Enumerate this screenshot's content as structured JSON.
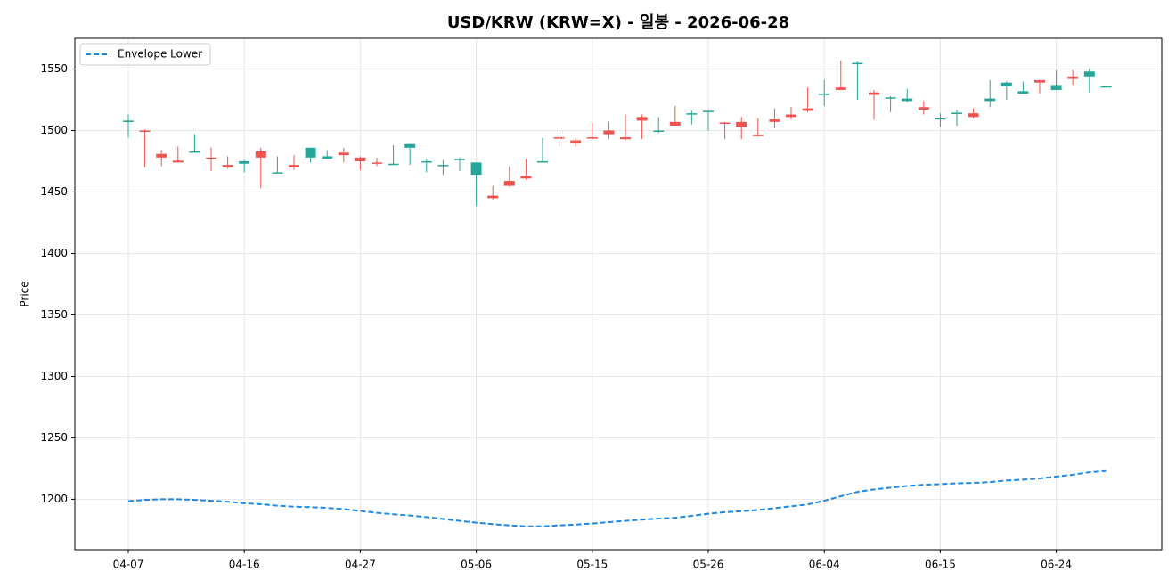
{
  "chart_data": {
    "type": "candlestick",
    "title": "USD/KRW (KRW=X) - 일봉 - 2026-06-28",
    "y_label": "Price",
    "categories": [
      "04-07",
      null,
      null,
      null,
      null,
      null,
      null,
      "04-16",
      null,
      null,
      null,
      null,
      null,
      null,
      "04-27",
      null,
      null,
      null,
      null,
      null,
      null,
      "05-06",
      null,
      null,
      null,
      null,
      null,
      null,
      "05-15",
      null,
      null,
      null,
      null,
      null,
      null,
      "05-26",
      null,
      null,
      null,
      null,
      null,
      null,
      "06-04",
      null,
      null,
      null,
      null,
      null,
      null,
      "06-15",
      null,
      null,
      null,
      null,
      null,
      null,
      "06-24",
      null,
      null,
      null
    ],
    "open": [
      1507,
      1500,
      1481,
      1475.5,
      1482,
      1478,
      1472,
      1473,
      1483,
      1465,
      1472,
      1478,
      1477,
      1482,
      1478,
      1474,
      1472,
      1486,
      1474,
      1471,
      1476,
      1464,
      1447,
      1459,
      1463,
      1474,
      1494.5,
      1492,
      1494.5,
      1500,
      1494.5,
      1511,
      1499,
      1507,
      1513,
      1515,
      1506.5,
      1507,
      1496.5,
      1509,
      1513,
      1518,
      1529,
      1535,
      1554,
      1531,
      1526,
      1524,
      1519,
      1509,
      1513.5,
      1514,
      1524,
      1536,
      1530,
      1541,
      1533,
      1544,
      1544,
      1535.5
    ],
    "high": [
      1513,
      1501,
      1484,
      1487,
      1497,
      1486,
      1479,
      1476,
      1486,
      1479,
      1480,
      1486,
      1484,
      1486,
      1479,
      1478,
      1488,
      1489,
      1477,
      1476,
      1478,
      1474,
      1455,
      1471,
      1477,
      1494,
      1500,
      1494,
      1506,
      1507,
      1513,
      1513,
      1511,
      1520,
      1516,
      1516,
      1507,
      1511,
      1510,
      1518,
      1519,
      1535,
      1541,
      1557,
      1556,
      1533,
      1528,
      1534,
      1524,
      1514,
      1517,
      1518,
      1541,
      1540,
      1540,
      1541,
      1549,
      1549,
      1550,
      1536
    ],
    "low": [
      1494,
      1470,
      1471,
      1474,
      1482,
      1467,
      1469,
      1466,
      1453,
      1465,
      1468,
      1474,
      1477,
      1474,
      1468,
      1471,
      1472,
      1472,
      1466,
      1464,
      1467,
      1439,
      1444,
      1454,
      1460,
      1474,
      1487,
      1487,
      1493,
      1493,
      1492,
      1493,
      1498,
      1504,
      1505,
      1500,
      1493,
      1493,
      1495,
      1502,
      1509,
      1515,
      1520,
      1533,
      1525,
      1509,
      1515,
      1523,
      1513,
      1503,
      1504,
      1510,
      1519,
      1525,
      1530,
      1530,
      1533,
      1537,
      1531,
      1535.5
    ],
    "close": [
      1508,
      1499,
      1478,
      1474,
      1483,
      1477,
      1470,
      1475,
      1478,
      1466,
      1470,
      1486,
      1479,
      1480,
      1475,
      1473,
      1473,
      1489,
      1475,
      1472,
      1477,
      1474,
      1445,
      1455,
      1461,
      1475,
      1493.5,
      1490,
      1493.5,
      1497,
      1493,
      1508,
      1500,
      1504,
      1514,
      1516,
      1505.5,
      1503,
      1495.5,
      1507,
      1511,
      1516,
      1530,
      1533,
      1555,
      1529,
      1527,
      1526,
      1517,
      1510,
      1514.5,
      1511,
      1526,
      1539,
      1532,
      1539,
      1537,
      1542,
      1548,
      1536
    ],
    "up_color": "#26a69a",
    "down_color": "#ef5350",
    "series": [
      {
        "name": "Envelope Lower",
        "color": "#1e88e5",
        "dash": true,
        "values": [
          1198.5,
          1199.5,
          1200,
          1200,
          1199.5,
          1198.8,
          1198,
          1196.8,
          1196,
          1194.8,
          1194,
          1193.6,
          1193,
          1192,
          1190.5,
          1189,
          1187.8,
          1186.8,
          1185.5,
          1184,
          1182.5,
          1181,
          1179.8,
          1178.8,
          1178,
          1178,
          1178.8,
          1179.5,
          1180.3,
          1181.5,
          1182.5,
          1183.5,
          1184.3,
          1185,
          1186.5,
          1188.3,
          1189.5,
          1190.3,
          1191.3,
          1192.8,
          1194.3,
          1195.8,
          1198.8,
          1202.5,
          1206,
          1208,
          1209.5,
          1210.8,
          1211.8,
          1212.3,
          1213,
          1213.3,
          1214,
          1215.3,
          1216,
          1217,
          1218.5,
          1220,
          1222,
          1223
        ]
      }
    ],
    "ylim": [
      1159,
      1575
    ],
    "yticks": [
      1200,
      1250,
      1300,
      1350,
      1400,
      1450,
      1500,
      1550
    ],
    "grid": true,
    "legend": "upper left"
  }
}
